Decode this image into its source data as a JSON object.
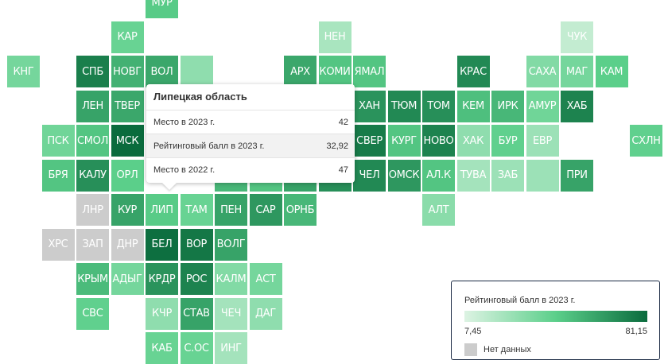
{
  "colors": {
    "scale_low": "#ddf3e3",
    "scale_mid": "#5bcf8a",
    "scale_high": "#0a6b3d",
    "no_data": "#cccccc"
  },
  "regions": [
    {
      "code": "МУР",
      "col": 4,
      "row": 0,
      "level": 0.52
    },
    {
      "code": "КАР",
      "col": 3,
      "row": 1,
      "level": 0.45
    },
    {
      "code": "НЕН",
      "col": 9,
      "row": 1,
      "level": 0.2
    },
    {
      "code": "ЧУК",
      "col": 16,
      "row": 1,
      "level": 0.1
    },
    {
      "code": "КНГ",
      "col": 0,
      "row": 2,
      "level": 0.4
    },
    {
      "code": "СПБ",
      "col": 2,
      "row": 2,
      "level": 0.9
    },
    {
      "code": "НОВГ",
      "col": 3,
      "row": 2,
      "level": 0.65
    },
    {
      "code": "ВОЛ",
      "col": 4,
      "row": 2,
      "level": 0.7
    },
    {
      "code": "АРХ",
      "col": 8,
      "row": 2,
      "level": 0.7
    },
    {
      "code": "КОМИ",
      "col": 9,
      "row": 2,
      "level": 0.55
    },
    {
      "code": "ЯМАЛ",
      "col": 10,
      "row": 2,
      "level": 0.55
    },
    {
      "code": "КРАС",
      "col": 13,
      "row": 2,
      "level": 0.85
    },
    {
      "code": "САХА",
      "col": 15,
      "row": 2,
      "level": 0.35
    },
    {
      "code": "МАГ",
      "col": 16,
      "row": 2,
      "level": 0.4
    },
    {
      "code": "КАМ",
      "col": 17,
      "row": 2,
      "level": 0.5
    },
    {
      "code": "ЛЕН",
      "col": 2,
      "row": 3,
      "level": 0.72
    },
    {
      "code": "ТВЕР",
      "col": 3,
      "row": 3,
      "level": 0.7
    },
    {
      "code": "ХАН",
      "col": 10,
      "row": 3,
      "level": 0.8
    },
    {
      "code": "ТЮМ",
      "col": 11,
      "row": 3,
      "level": 0.85
    },
    {
      "code": "ТОМ",
      "col": 12,
      "row": 3,
      "level": 0.82
    },
    {
      "code": "КЕМ",
      "col": 13,
      "row": 3,
      "level": 0.58
    },
    {
      "code": "ИРК",
      "col": 14,
      "row": 3,
      "level": 0.62
    },
    {
      "code": "АМУР",
      "col": 15,
      "row": 3,
      "level": 0.42
    },
    {
      "code": "ХАБ",
      "col": 16,
      "row": 3,
      "level": 0.88
    },
    {
      "code": "ПСК",
      "col": 1,
      "row": 4,
      "level": 0.42
    },
    {
      "code": "СМОЛ",
      "col": 2,
      "row": 4,
      "level": 0.55
    },
    {
      "code": "МСК",
      "col": 3,
      "row": 4,
      "level": 1.0
    },
    {
      "code": "СВЕР",
      "col": 10,
      "row": 4,
      "level": 0.92
    },
    {
      "code": "КУРГ",
      "col": 11,
      "row": 4,
      "level": 0.55
    },
    {
      "code": "НОВО",
      "col": 12,
      "row": 4,
      "level": 0.88
    },
    {
      "code": "ХАК",
      "col": 13,
      "row": 4,
      "level": 0.3
    },
    {
      "code": "БУР",
      "col": 14,
      "row": 4,
      "level": 0.48
    },
    {
      "code": "ЕВР",
      "col": 15,
      "row": 4,
      "level": 0.25
    },
    {
      "code": "СХЛН",
      "col": 18,
      "row": 4,
      "level": 0.48
    },
    {
      "code": "БРЯ",
      "col": 1,
      "row": 5,
      "level": 0.55
    },
    {
      "code": "КАЛУ",
      "col": 2,
      "row": 5,
      "level": 0.82
    },
    {
      "code": "ОРЛ",
      "col": 3,
      "row": 5,
      "level": 0.5
    },
    {
      "code": "ЧЕЛ",
      "col": 10,
      "row": 5,
      "level": 0.85
    },
    {
      "code": "ОМСК",
      "col": 11,
      "row": 5,
      "level": 0.78
    },
    {
      "code": "АЛ.К",
      "col": 12,
      "row": 5,
      "level": 0.55
    },
    {
      "code": "ТУВА",
      "col": 13,
      "row": 5,
      "level": 0.22
    },
    {
      "code": "ЗАБ",
      "col": 14,
      "row": 5,
      "level": 0.25
    },
    {
      "code": "ПРИ",
      "col": 16,
      "row": 5,
      "level": 0.72
    },
    {
      "code": "ЛНР",
      "col": 2,
      "row": 6,
      "nodata": true
    },
    {
      "code": "КУР",
      "col": 3,
      "row": 6,
      "level": 0.72
    },
    {
      "code": "ЛИП",
      "col": 4,
      "row": 6,
      "level": 0.52
    },
    {
      "code": "ТАМ",
      "col": 5,
      "row": 6,
      "level": 0.45
    },
    {
      "code": "ПЕН",
      "col": 6,
      "row": 6,
      "level": 0.72
    },
    {
      "code": "САР",
      "col": 7,
      "row": 6,
      "level": 0.78
    },
    {
      "code": "ОРНБ",
      "col": 8,
      "row": 6,
      "level": 0.62
    },
    {
      "code": "АЛТ",
      "col": 12,
      "row": 6,
      "level": 0.32
    },
    {
      "code": "ХРС",
      "col": 1,
      "row": 7,
      "nodata": true
    },
    {
      "code": "ЗАП",
      "col": 2,
      "row": 7,
      "nodata": true
    },
    {
      "code": "ДНР",
      "col": 3,
      "row": 7,
      "nodata": true
    },
    {
      "code": "БЕЛ",
      "col": 4,
      "row": 7,
      "level": 0.98
    },
    {
      "code": "ВОР",
      "col": 5,
      "row": 7,
      "level": 0.94
    },
    {
      "code": "ВОЛГ",
      "col": 6,
      "row": 7,
      "level": 0.72
    },
    {
      "code": "КРЫМ",
      "col": 2,
      "row": 8,
      "level": 0.6
    },
    {
      "code": "АДЫГ",
      "col": 3,
      "row": 8,
      "level": 0.4
    },
    {
      "code": "КРДР",
      "col": 4,
      "row": 8,
      "level": 0.8
    },
    {
      "code": "РОС",
      "col": 5,
      "row": 8,
      "level": 0.88
    },
    {
      "code": "КАЛМ",
      "col": 6,
      "row": 8,
      "level": 0.35
    },
    {
      "code": "АСТ",
      "col": 7,
      "row": 8,
      "level": 0.4
    },
    {
      "code": "СВС",
      "col": 2,
      "row": 9,
      "level": 0.48
    },
    {
      "code": "КЧР",
      "col": 4,
      "row": 9,
      "level": 0.3
    },
    {
      "code": "СТАВ",
      "col": 5,
      "row": 9,
      "level": 0.72
    },
    {
      "code": "ЧЕЧ",
      "col": 6,
      "row": 9,
      "level": 0.22
    },
    {
      "code": "ДАГ",
      "col": 7,
      "row": 9,
      "level": 0.3
    },
    {
      "code": "КАБ",
      "col": 4,
      "row": 10,
      "level": 0.45
    },
    {
      "code": "С.ОС",
      "col": 5,
      "row": 10,
      "level": 0.45
    },
    {
      "code": "ИНГ",
      "col": 6,
      "row": 10,
      "level": 0.22
    },
    {
      "code": "",
      "col": 5,
      "row": 2,
      "level": 0.3
    },
    {
      "code": "",
      "col": 5,
      "row": 3,
      "level": 0.62
    },
    {
      "code": "",
      "col": 6,
      "row": 5,
      "level": 0.62
    },
    {
      "code": "",
      "col": 7,
      "row": 5,
      "level": 0.55
    },
    {
      "code": "",
      "col": 8,
      "row": 5,
      "level": 0.72
    },
    {
      "code": "",
      "col": 9,
      "row": 5,
      "level": 0.82
    },
    {
      "code": "",
      "col": 15,
      "row": 5,
      "level": 0.25
    }
  ],
  "tooltip": {
    "title": "Липецкая область",
    "rows": [
      {
        "label": "Место в 2023 г.",
        "value": "42"
      },
      {
        "label": "Рейтинговый балл в 2023 г.",
        "value": "32,92"
      },
      {
        "label": "Место в 2022 г.",
        "value": "47"
      }
    ]
  },
  "legend": {
    "title": "Рейтинговый балл в 2023 г.",
    "min": "7,45",
    "max": "81,15",
    "no_data_label": "Нет данных"
  }
}
